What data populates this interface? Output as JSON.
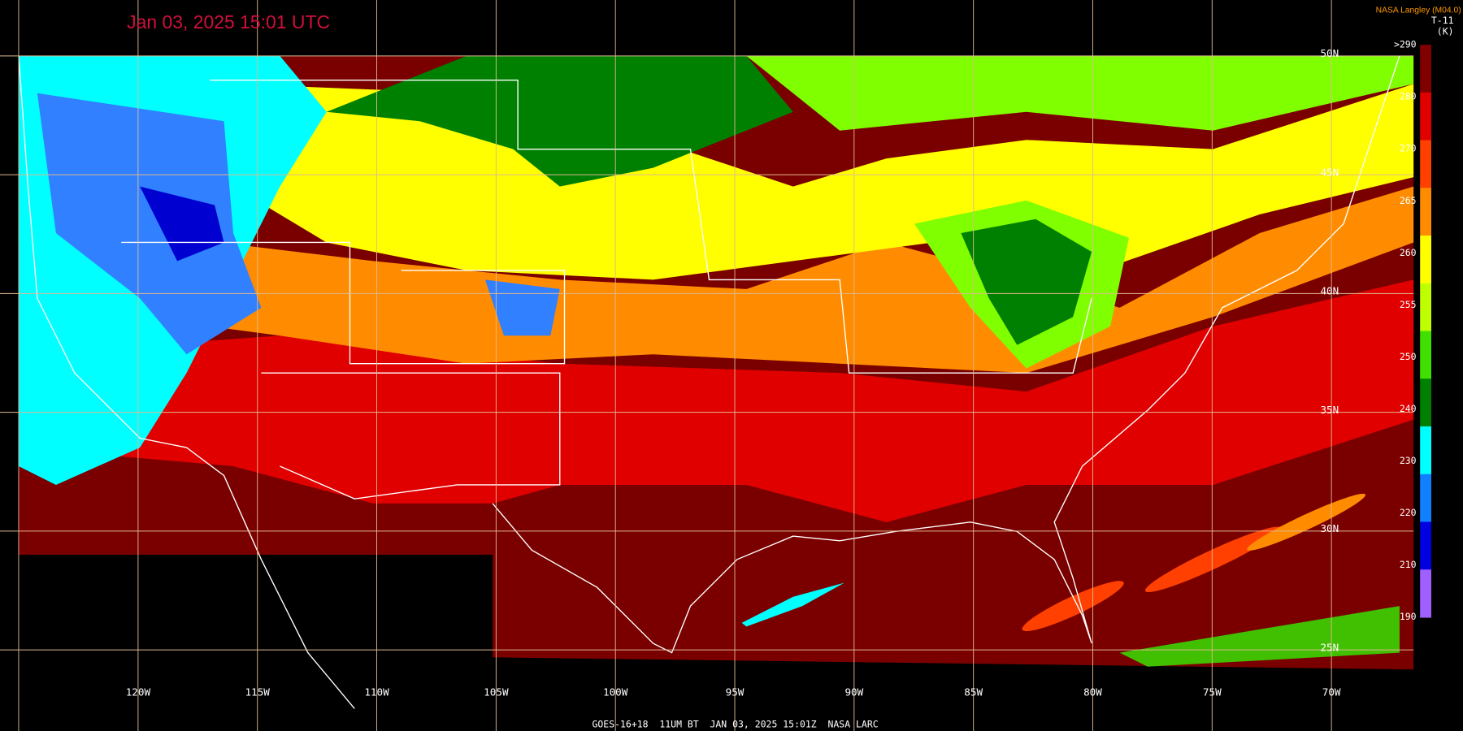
{
  "header": {
    "title": "Jan 03, 2025 15:01 UTC",
    "credit": "NASA Langley (M04.0)",
    "product": "T-11",
    "unit": "(K)"
  },
  "colorbar": {
    "labels": [
      ">290",
      "280",
      "270",
      "265",
      "260",
      "255",
      "250",
      "240",
      "230",
      "220",
      "210",
      "190"
    ]
  },
  "longitudes": [
    "120W",
    "115W",
    "110W",
    "105W",
    "100W",
    "95W",
    "90W",
    "85W",
    "80W",
    "75W",
    "70W"
  ],
  "latitudes": [
    "50N",
    "45N",
    "40N",
    "35N",
    "30N",
    "25N"
  ],
  "footer": "GOES-16+18  11UM BT  JAN 03, 2025 15:01Z  NASA LARC"
}
